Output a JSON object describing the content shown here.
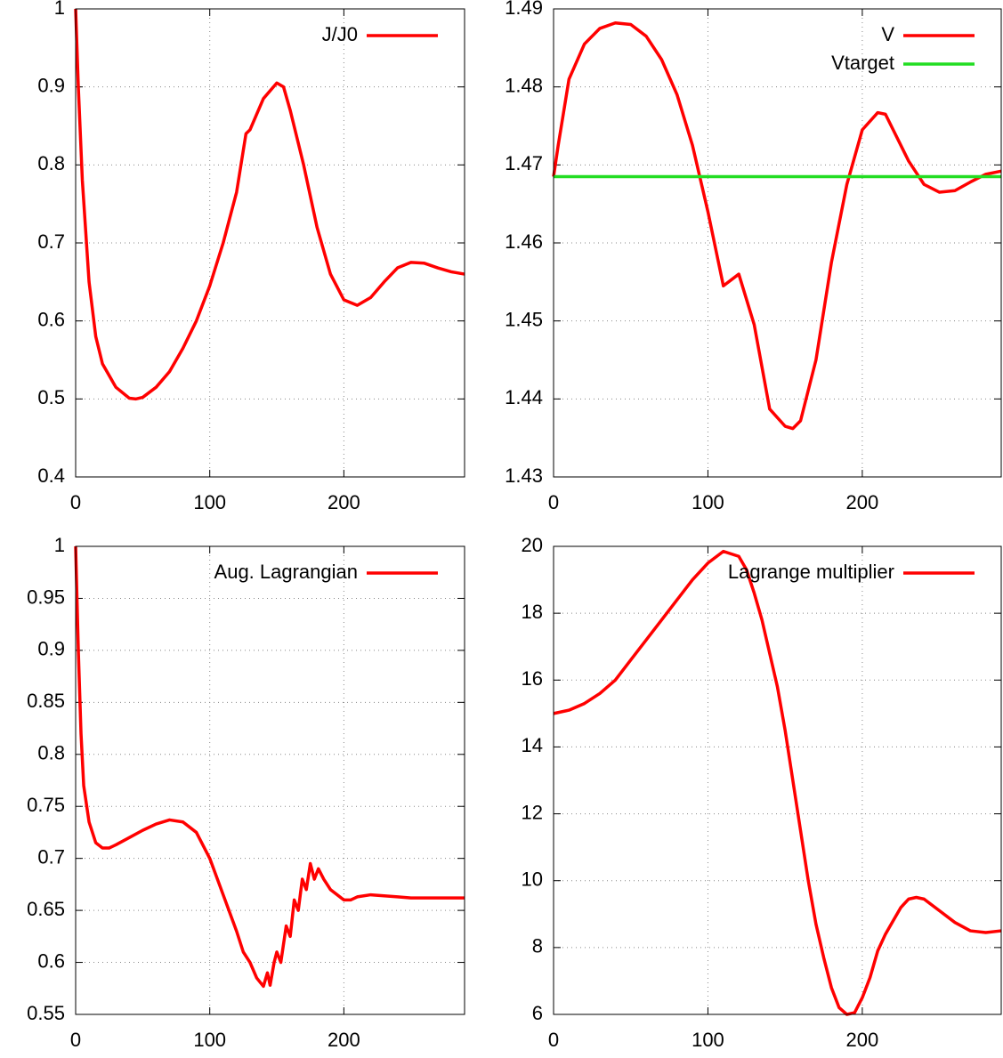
{
  "chart_data": [
    {
      "type": "line",
      "xlim": [
        0,
        290
      ],
      "ylim": [
        0.4,
        1
      ],
      "xticks": [
        0,
        100,
        200
      ],
      "yticks": [
        0.4,
        0.5,
        0.6,
        0.7,
        0.8,
        0.9,
        1
      ],
      "grid": true,
      "legend": "upper right",
      "series": [
        {
          "name": "J/J0",
          "color": "#ff0000",
          "x": [
            0,
            2,
            5,
            10,
            15,
            20,
            30,
            40,
            45,
            50,
            60,
            70,
            80,
            90,
            100,
            110,
            120,
            127,
            130,
            140,
            150,
            155,
            160,
            170,
            180,
            190,
            200,
            210,
            220,
            230,
            240,
            250,
            260,
            270,
            280,
            290
          ],
          "values": [
            1.0,
            0.9,
            0.78,
            0.65,
            0.58,
            0.545,
            0.515,
            0.501,
            0.5,
            0.502,
            0.515,
            0.535,
            0.565,
            0.6,
            0.645,
            0.7,
            0.765,
            0.84,
            0.845,
            0.885,
            0.905,
            0.9,
            0.87,
            0.8,
            0.72,
            0.66,
            0.627,
            0.62,
            0.63,
            0.65,
            0.668,
            0.675,
            0.674,
            0.668,
            0.663,
            0.66
          ]
        }
      ]
    },
    {
      "type": "line",
      "xlim": [
        0,
        290
      ],
      "ylim": [
        1.43,
        1.49
      ],
      "xticks": [
        0,
        100,
        200
      ],
      "yticks": [
        1.43,
        1.44,
        1.45,
        1.46,
        1.47,
        1.48,
        1.49
      ],
      "grid": true,
      "legend": "upper right",
      "series": [
        {
          "name": "V",
          "color": "#ff0000",
          "x": [
            0,
            3,
            10,
            20,
            30,
            40,
            50,
            60,
            70,
            80,
            90,
            100,
            110,
            120,
            130,
            140,
            150,
            155,
            160,
            170,
            180,
            190,
            200,
            210,
            215,
            220,
            230,
            240,
            250,
            260,
            270,
            280,
            290
          ],
          "values": [
            1.4685,
            1.4725,
            1.481,
            1.4855,
            1.4875,
            1.4882,
            1.488,
            1.4865,
            1.4835,
            1.479,
            1.4725,
            1.464,
            1.4545,
            1.456,
            1.4495,
            1.4387,
            1.4365,
            1.4362,
            1.4372,
            1.445,
            1.4575,
            1.4675,
            1.4745,
            1.4767,
            1.4765,
            1.4745,
            1.4705,
            1.4675,
            1.4665,
            1.4667,
            1.4678,
            1.4688,
            1.4692
          ]
        },
        {
          "name": "Vtarget",
          "color": "#22dd22",
          "x": [
            0,
            290
          ],
          "values": [
            1.4685,
            1.4685
          ]
        }
      ]
    },
    {
      "type": "line",
      "xlim": [
        0,
        290
      ],
      "ylim": [
        0.55,
        1
      ],
      "xticks": [
        0,
        100,
        200
      ],
      "yticks": [
        0.55,
        0.6,
        0.65,
        0.7,
        0.75,
        0.8,
        0.85,
        0.9,
        0.95,
        1
      ],
      "grid": true,
      "legend": "upper right",
      "series": [
        {
          "name": "Aug. Lagrangian",
          "color": "#ff0000",
          "x": [
            0,
            2,
            4,
            6,
            10,
            15,
            20,
            25,
            30,
            40,
            50,
            60,
            70,
            80,
            90,
            100,
            110,
            120,
            125,
            130,
            135,
            140,
            143,
            145,
            148,
            150,
            153,
            157,
            160,
            163,
            166,
            169,
            172,
            175,
            178,
            181,
            185,
            190,
            200,
            205,
            210,
            220,
            230,
            240,
            250,
            290
          ],
          "values": [
            1.0,
            0.9,
            0.82,
            0.77,
            0.735,
            0.715,
            0.71,
            0.71,
            0.713,
            0.72,
            0.727,
            0.733,
            0.737,
            0.735,
            0.725,
            0.7,
            0.665,
            0.63,
            0.61,
            0.6,
            0.585,
            0.577,
            0.59,
            0.578,
            0.6,
            0.61,
            0.6,
            0.635,
            0.625,
            0.66,
            0.65,
            0.68,
            0.67,
            0.695,
            0.68,
            0.69,
            0.68,
            0.67,
            0.66,
            0.66,
            0.663,
            0.665,
            0.664,
            0.663,
            0.662,
            0.662
          ]
        }
      ]
    },
    {
      "type": "line",
      "xlim": [
        0,
        290
      ],
      "ylim": [
        6,
        20
      ],
      "xticks": [
        0,
        100,
        200
      ],
      "yticks": [
        6,
        8,
        10,
        12,
        14,
        16,
        18,
        20
      ],
      "grid": true,
      "legend": "upper right",
      "series": [
        {
          "name": "Lagrange multiplier",
          "color": "#ff0000",
          "x": [
            0,
            10,
            20,
            30,
            40,
            50,
            60,
            70,
            80,
            90,
            100,
            110,
            120,
            125,
            130,
            135,
            140,
            145,
            150,
            155,
            160,
            165,
            170,
            175,
            180,
            185,
            190,
            195,
            200,
            205,
            210,
            215,
            220,
            225,
            230,
            235,
            240,
            250,
            260,
            270,
            280,
            290
          ],
          "values": [
            15,
            15.1,
            15.3,
            15.6,
            16,
            16.6,
            17.2,
            17.8,
            18.4,
            19,
            19.5,
            19.85,
            19.7,
            19.3,
            18.6,
            17.8,
            16.8,
            15.8,
            14.5,
            13,
            11.5,
            10,
            8.7,
            7.7,
            6.8,
            6.2,
            6.0,
            6.05,
            6.5,
            7.1,
            7.9,
            8.4,
            8.8,
            9.2,
            9.45,
            9.5,
            9.45,
            9.1,
            8.75,
            8.5,
            8.45,
            8.5
          ]
        }
      ]
    }
  ]
}
